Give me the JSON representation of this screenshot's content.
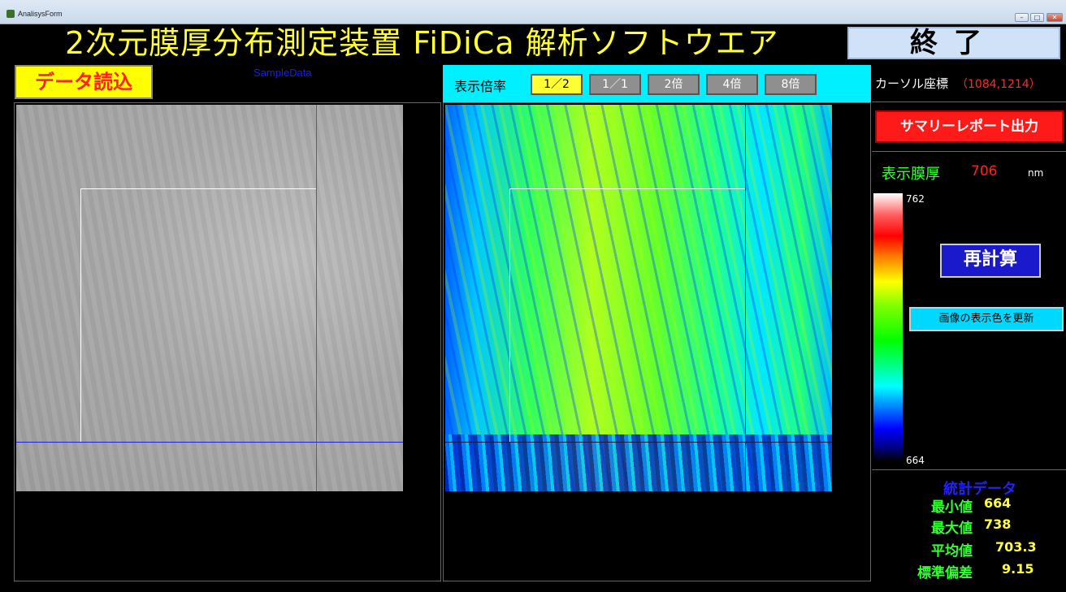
{
  "window": {
    "title": "AnalisysForm",
    "buttons": [
      "–",
      "□",
      "✕"
    ]
  },
  "header": {
    "title": "2次元膜厚分布測定装置 FiDiCa 解析ソフトウエア",
    "exit_label": "終了"
  },
  "toolbar": {
    "load_label": "データ読込",
    "data_name": "SampleData"
  },
  "zoom": {
    "label": "表示倍率",
    "options": [
      "1／2",
      "1／1",
      "2倍",
      "4倍",
      "8倍"
    ],
    "selected": "1／2"
  },
  "cursor": {
    "label": "カーソル座標",
    "value": "（1084,1214）"
  },
  "report": {
    "label": "サマリーレポート出力"
  },
  "thickness": {
    "label": "表示膜厚",
    "value": "706",
    "unit": "nm"
  },
  "colorbar": {
    "max": "762",
    "min": "664"
  },
  "actions": {
    "recalc_label": "再計算",
    "refresh_label": "画像の表示色を更新"
  },
  "stats": {
    "title": "統計データ",
    "rows": [
      {
        "name": "最小値",
        "value": "664"
      },
      {
        "name": "最大値",
        "value": "738"
      },
      {
        "name": "平均値",
        "value": "703.3"
      },
      {
        "name": "標準偏差",
        "value": "9.15"
      }
    ]
  },
  "colors": {
    "title": "#ffff33",
    "accent_red": "#ff1a1a",
    "cyan": "#00f0ff",
    "green_text": "#33ff33"
  }
}
